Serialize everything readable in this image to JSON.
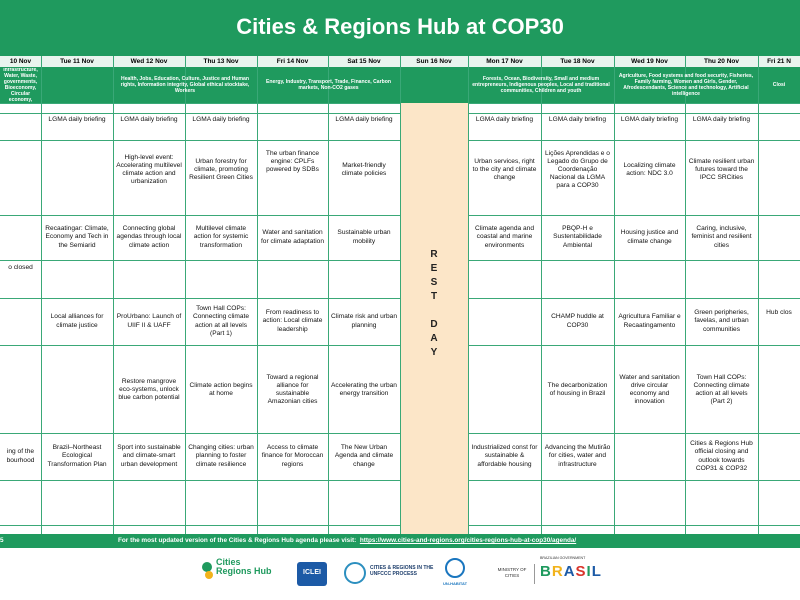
{
  "header": {
    "title": "Cities & Regions Hub at COP30"
  },
  "days": [
    {
      "label": "10 Nov",
      "topics": "n, Cities, Infrastructure, Water, Waste, governments, Bioeconomy, Circular economy, Tourism"
    },
    {
      "label": "Tue 11 Nov",
      "topics": ""
    },
    {
      "label": "Wed 12 Nov",
      "topics": "Health, Jobs, Education, Culture, Justice and Human rights, Information integrity, Global ethical stocktake, Workers"
    },
    {
      "label": "Thu 13 Nov",
      "topics": ""
    },
    {
      "label": "Fri 14 Nov",
      "topics": "Energy, Industry, Transport, Trade, Finance, Carbon markets, Non-CO2 gases"
    },
    {
      "label": "Sat 15 Nov",
      "topics": ""
    },
    {
      "label": "Sun 16 Nov",
      "topics": ""
    },
    {
      "label": "Mon 17 Nov",
      "topics": "Forests, Ocean, Biodiversity, Small and medium entrepreneurs, Indigenous peoples, Local and traditional communities, Children and youth"
    },
    {
      "label": "Tue 18 Nov",
      "topics": ""
    },
    {
      "label": "Wed 19 Nov",
      "topics": "Agriculture, Food systems and food security, Fisheries, Family farming, Women and Girls, Gender, Afrodescendants, Science and technology, Artificial intelligence"
    },
    {
      "label": "Thu 20 Nov",
      "topics": ""
    },
    {
      "label": "Fri 21 N",
      "topics": "Closi"
    }
  ],
  "cells": {
    "c1_r1": "LGMA daily briefing",
    "c2_r1": "LGMA daily briefing",
    "c3_r1": "LGMA daily briefing",
    "c5_r1": "LGMA daily briefing",
    "c7_r1": "LGMA daily briefing",
    "c8_r1": "LGMA daily briefing",
    "c9_r1": "LGMA daily briefing",
    "c10_r1": "LGMA daily briefing",
    "c2_r2": "High-level event: Accelerating multilevel climate action and urbanization",
    "c3_r2": "Urban forestry for climate, promoting Resilient Green Cities",
    "c4_r2": "The urban finance engine: CPLFs powered by SDBs",
    "c5_r2": "Market-friendly climate policies",
    "c7_r2": "Urban services, right to the city and climate change",
    "c8_r2": "Lições Aprendidas e o Legado do Grupo de Coordenação Nacional da LGMA para a COP30",
    "c9_r2": "Localizing climate action: NDC 3.0",
    "c10_r2": "Climate resilient urban futures toward the IPCC SRCities",
    "c1_r3": "Recaatingar: Climate, Economy and Tech in the Semiarid",
    "c2_r3": "Connecting global agendas through local climate action",
    "c3_r3": "Multilevel climate action for systemic transformation",
    "c4_r3": "Water and sanitation for climate adaptation",
    "c5_r3": "Sustainable urban mobility",
    "c7_r3": "Climate agenda and coastal and marine environments",
    "c8_r3": "PBQP-H e Sustentabilidade Ambiental",
    "c9_r3": "Housing justice and climate change",
    "c10_r3": "Caring, inclusive, feminist and resilient cities",
    "c0_r3": "o closed",
    "c1_r4": "Local alliances for climate justice",
    "c2_r4": "ProUrbano: Launch of UIIF II & UAFF",
    "c3_r4": "Town Hall COPs: Connecting climate action at all levels (Part 1)",
    "c4_r4": "From readiness to action: Local climate leadership",
    "c5_r4": "Climate risk and urban planning",
    "c8_r4": "CHAMP huddle at COP30",
    "c9_r4": "Agricultura Familiar e Recaatingamento",
    "c10_r4": "Green peripheries, favelas, and urban communities",
    "c11_r4": "Hub clos",
    "c2_r5": "Restore mangrove eco-systems, unlock blue carbon potential",
    "c3_r5": "Climate action begins at home",
    "c4_r5": "Toward a regional alliance for sustainable Amazonian cities",
    "c5_r5": "Accelerating the urban energy transition",
    "c8_r5": "The decarbonization of housing in Brazil",
    "c9_r5": "Water and sanitation drive circular economy and innovation",
    "c10_r5": "Town Hall COPs: Connecting climate action at all levels (Part 2)",
    "c0_r6": "ing of the bourhood",
    "c1_r6": "Brazil–Northeast Ecological Transformation Plan",
    "c2_r6": "Sport into sustainable and climate-smart urban development",
    "c3_r6": "Changing cities: urban planning to foster climate resilience",
    "c4_r6": "Access to climate finance for Moroccan regions",
    "c5_r6": "The New Urban Agenda and climate change",
    "c7_r6": "Industrialized const for sustainable & affordable housing",
    "c8_r6": "Advancing the Mutirão for cities, water and infrastructure",
    "c10_r6": "Cities & Regions Hub official closing and outlook towards COP31 & COP32"
  },
  "rest_day": [
    "R",
    "E",
    "S",
    "T",
    "D",
    "A",
    "Y"
  ],
  "footer": {
    "page": "5",
    "text": "For the most updated version of the Cities & Regions Hub agenda please visit:",
    "link": "https://www.cities-and-regions.org/cities-regions-hub-at-cop30/agenda/"
  },
  "logos": {
    "hub": "Cities Regions Hub",
    "iclei": "ICLEI",
    "unfccc": "CITIES & REGIONS IN THE UNFCCC PROCESS",
    "unhabitat": "UN-HABITAT",
    "ministry": "MINISTRY OF CITIES",
    "brasil": "BRASIL",
    "brasil_gov": "BRAZILIAN GOVERNMENT"
  },
  "colors": {
    "green": "#1f9a5e",
    "rest": "#fce6c8",
    "light": "#e9f4ee"
  }
}
